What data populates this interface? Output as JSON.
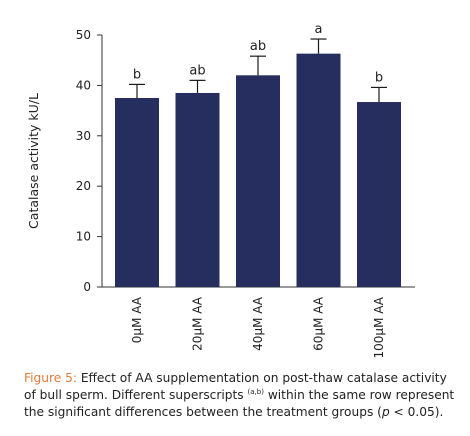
{
  "chart_data": {
    "type": "bar",
    "categories": [
      "0μM AA",
      "20μM AA",
      "40μM AA",
      "60μM AA",
      "100μM AA"
    ],
    "values": [
      37.5,
      38.5,
      42,
      46.3,
      36.7
    ],
    "errors": [
      2.7,
      2.5,
      3.8,
      2.9,
      2.9
    ],
    "significance": [
      "b",
      "ab",
      "ab",
      "a",
      "b"
    ],
    "ylabel": "Catalase activity kU/L",
    "xlabel": "",
    "ylim": [
      0,
      50
    ],
    "yticks": [
      0,
      10,
      20,
      30,
      40,
      50
    ],
    "grid": false,
    "colors": {
      "bar": "#262d5f",
      "error_bar": "#1a1a1a",
      "axis": "#333333"
    }
  },
  "caption": {
    "figure_label": "Figure 5:",
    "text_part1": " Effect of AA supplementation on post-thaw catalase activity of bull sperm. Different superscripts ",
    "superscript": "(a,b)",
    "text_part2": " within the same row represent the significant differences between the treatment groups (",
    "p_symbol": "p",
    "text_part3": " < 0.05)."
  }
}
